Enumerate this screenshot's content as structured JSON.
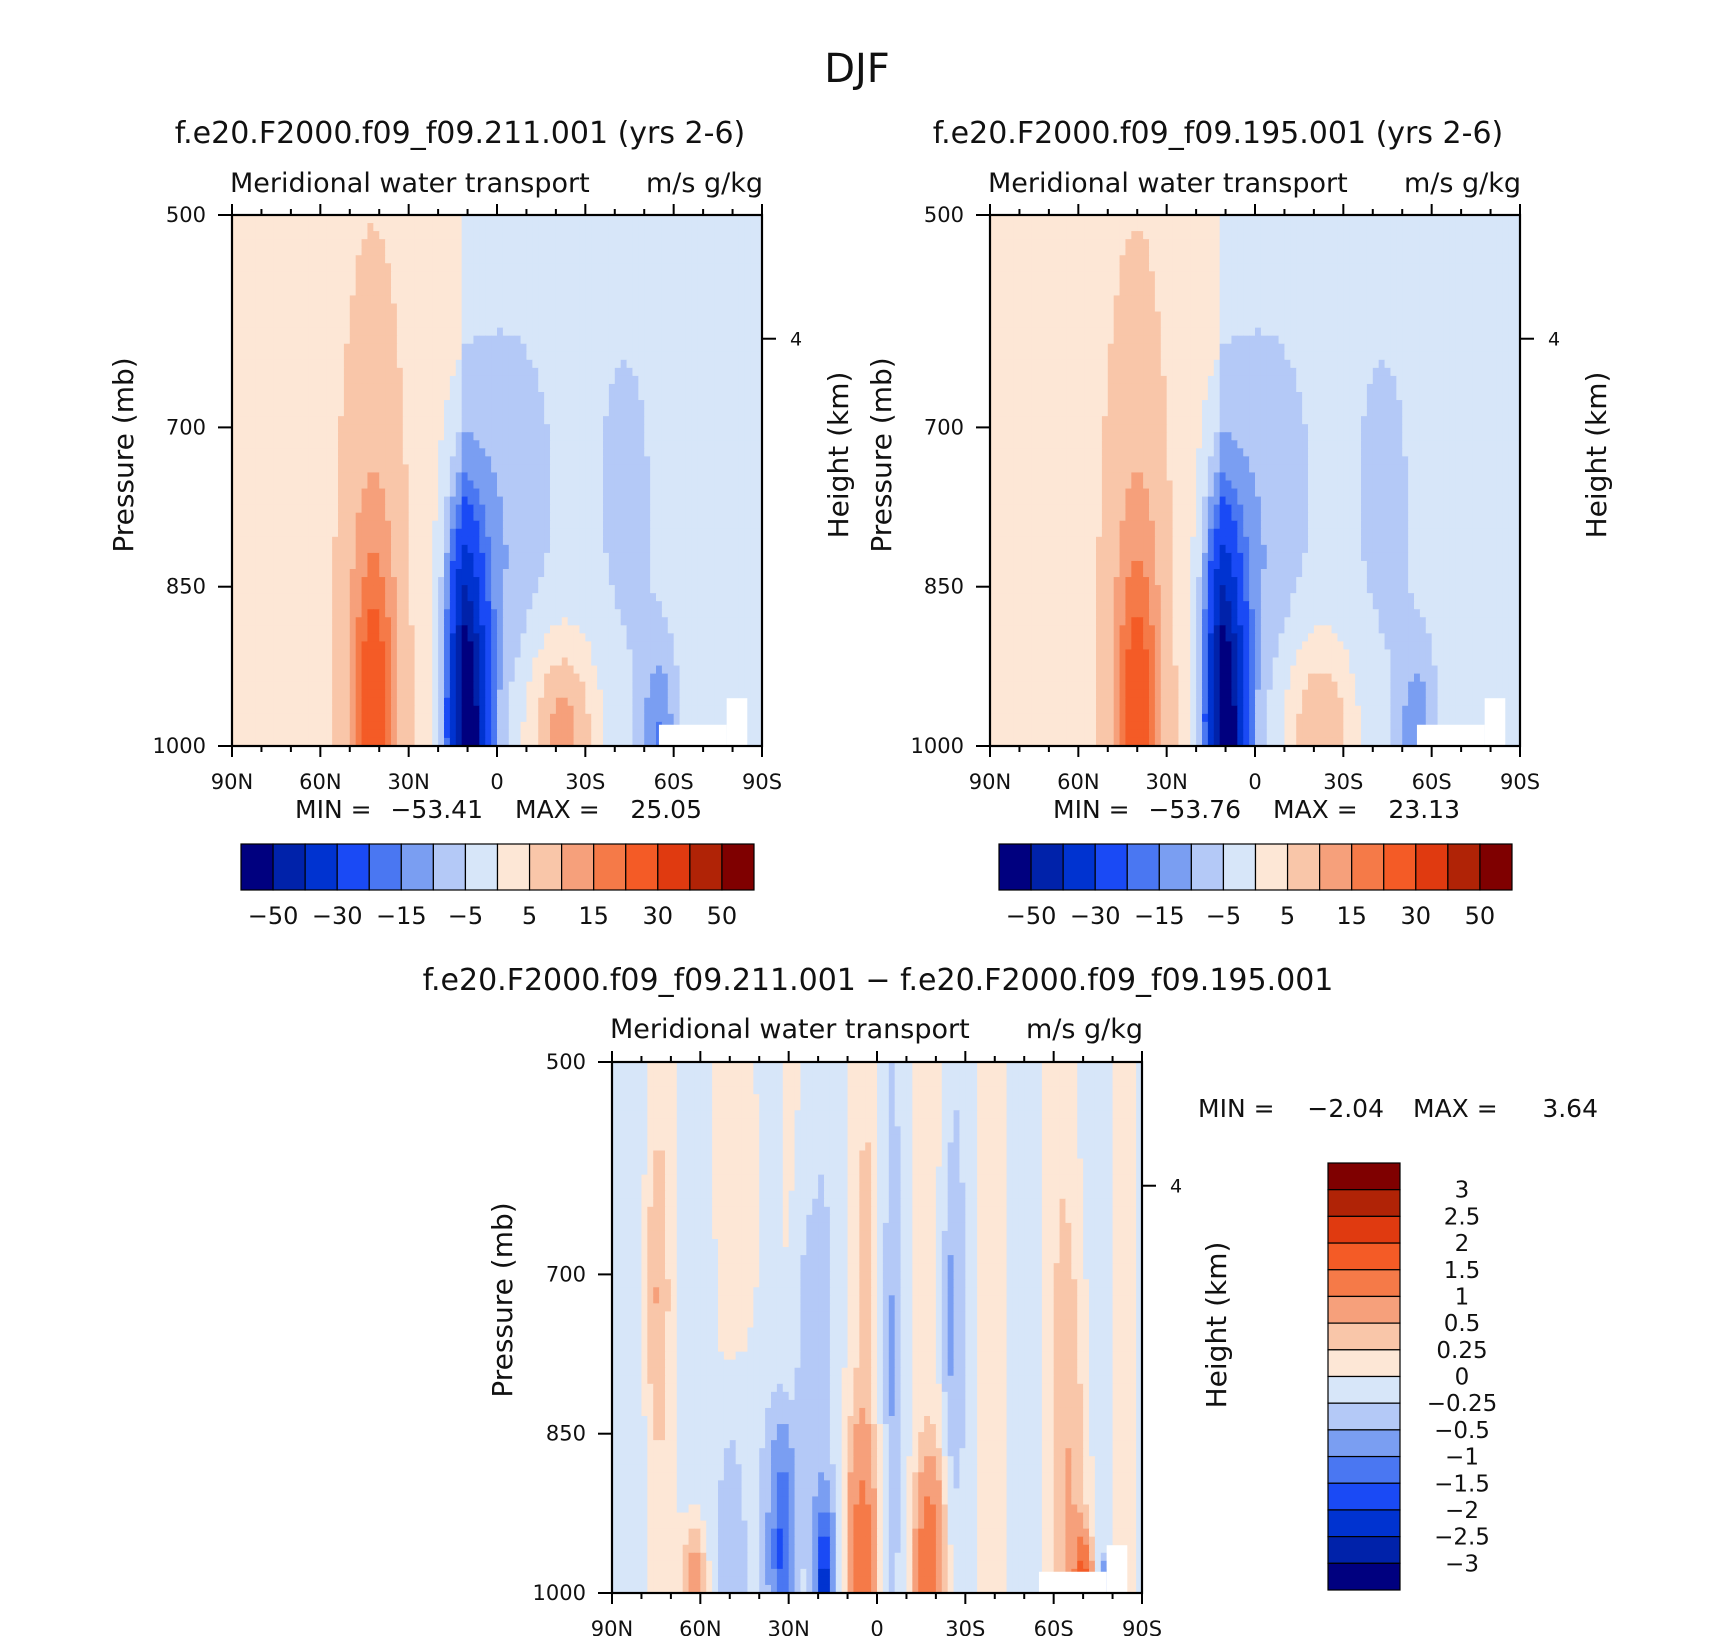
{
  "page_title": "DJF",
  "colors": {
    "neg": [
      "#00007f",
      "#0022aa",
      "#0033d0",
      "#1a4af5",
      "#4a77f2",
      "#7a9ef2",
      "#b4c9f7",
      "#d7e6f9"
    ],
    "pos": [
      "#fde7d6",
      "#f9c6a9",
      "#f6a07b",
      "#f57a48",
      "#f45b26",
      "#e03a10",
      "#b02306",
      "#7f0000"
    ]
  },
  "chart_data": [
    {
      "id": "panel1",
      "type": "heatmap",
      "title": "f.e20.F2000.f09_f09.211.001 (yrs 2-6)",
      "subtitle_left": "Meridional water transport",
      "subtitle_right": "m/s g/kg",
      "ylabel": "Pressure (mb)",
      "ylabel_right": "Height (km)",
      "xticks": [
        "90N",
        "60N",
        "30N",
        "0",
        "30S",
        "60S",
        "90S"
      ],
      "yticks": [
        "500",
        "700",
        "850",
        "1000"
      ],
      "right_ticks": [
        "4"
      ],
      "ylim": [
        1000,
        500
      ],
      "min_label": "MIN =",
      "min_value": "−53.41",
      "max_label": "MAX =",
      "max_value": "25.05",
      "colorbar_ticks": [
        "−50",
        "−30",
        "−15",
        "−5",
        "5",
        "15",
        "30",
        "50"
      ],
      "anomalies": [
        {
          "lat": 42,
          "p": 1000,
          "value": 10,
          "sx": 12,
          "sp": 420
        },
        {
          "lat": 42,
          "p": 960,
          "value": 14,
          "sx": 6,
          "sp": 130
        },
        {
          "lat": 10,
          "p": 1000,
          "value": -56,
          "sx": 7,
          "sp": 170
        },
        {
          "lat": 13,
          "p": 860,
          "value": -10,
          "sx": 4,
          "sp": 120
        },
        {
          "lat": 2,
          "p": 820,
          "value": -6,
          "sx": 15,
          "sp": 150
        },
        {
          "lat": -10,
          "p": 700,
          "value": -2,
          "sx": 30,
          "sp": 300
        },
        {
          "lat": -45,
          "p": 780,
          "value": -3,
          "sx": 12,
          "sp": 220
        },
        {
          "lat": -22,
          "p": 985,
          "value": 15,
          "sx": 12,
          "sp": 90
        },
        {
          "lat": -55,
          "p": 990,
          "value": -12,
          "sx": 6,
          "sp": 80
        }
      ]
    },
    {
      "id": "panel2",
      "type": "heatmap",
      "title": "f.e20.F2000.f09_f09.195.001 (yrs 2-6)",
      "subtitle_left": "Meridional water transport",
      "subtitle_right": "m/s g/kg",
      "ylabel": "Pressure (mb)",
      "ylabel_right": "Height (km)",
      "xticks": [
        "90N",
        "60N",
        "30N",
        "0",
        "30S",
        "60S",
        "90S"
      ],
      "yticks": [
        "500",
        "700",
        "850",
        "1000"
      ],
      "right_ticks": [
        "4"
      ],
      "ylim": [
        1000,
        500
      ],
      "min_label": "MIN =",
      "min_value": "−53.76",
      "max_label": "MAX =",
      "max_value": "23.13",
      "colorbar_ticks": [
        "−50",
        "−30",
        "−15",
        "−5",
        "5",
        "15",
        "30",
        "50"
      ],
      "anomalies": [
        {
          "lat": 40,
          "p": 1000,
          "value": 10,
          "sx": 12,
          "sp": 420
        },
        {
          "lat": 40,
          "p": 960,
          "value": 13,
          "sx": 6,
          "sp": 130
        },
        {
          "lat": 10,
          "p": 1000,
          "value": -56,
          "sx": 7,
          "sp": 170
        },
        {
          "lat": 13,
          "p": 860,
          "value": -10,
          "sx": 4,
          "sp": 120
        },
        {
          "lat": 2,
          "p": 820,
          "value": -6,
          "sx": 15,
          "sp": 150
        },
        {
          "lat": -10,
          "p": 700,
          "value": -2,
          "sx": 30,
          "sp": 300
        },
        {
          "lat": -45,
          "p": 780,
          "value": -3,
          "sx": 12,
          "sp": 220
        },
        {
          "lat": -22,
          "p": 985,
          "value": 13,
          "sx": 12,
          "sp": 90
        },
        {
          "lat": -55,
          "p": 990,
          "value": -11,
          "sx": 6,
          "sp": 80
        }
      ]
    },
    {
      "id": "panel3",
      "type": "heatmap",
      "title": "f.e20.F2000.f09_f09.211.001 − f.e20.F2000.f09_f09.195.001",
      "subtitle_left": "Meridional water transport",
      "subtitle_right": "m/s g/kg",
      "ylabel": "Pressure (mb)",
      "ylabel_right": "Height (km)",
      "xticks": [
        "90N",
        "60N",
        "30N",
        "0",
        "30S",
        "60S",
        "90S"
      ],
      "yticks": [
        "500",
        "700",
        "850",
        "1000"
      ],
      "right_ticks": [
        "4"
      ],
      "ylim": [
        1000,
        500
      ],
      "min_label": "MIN =",
      "min_value": "−2.04",
      "max_label": "MAX =",
      "max_value": "3.64",
      "colorbar_ticks": [
        "3",
        "2.5",
        "2",
        "1.5",
        "1",
        "0.5",
        "0.25",
        "0",
        "−0.25",
        "−0.5",
        "−1",
        "−1.5",
        "−2",
        "−2.5",
        "−3"
      ],
      "anomalies": [
        {
          "lat": 62,
          "p": 990,
          "value": 1.0,
          "sx": 4,
          "sp": 60
        },
        {
          "lat": 50,
          "p": 960,
          "value": -0.6,
          "sx": 5,
          "sp": 150
        },
        {
          "lat": 32,
          "p": 960,
          "value": -1.6,
          "sx": 4,
          "sp": 110
        },
        {
          "lat": 25,
          "p": 800,
          "value": -0.4,
          "sx": 5,
          "sp": 250
        },
        {
          "lat": 18,
          "p": 990,
          "value": -2.0,
          "sx": 3,
          "sp": 70
        },
        {
          "lat": 5,
          "p": 960,
          "value": 1.2,
          "sx": 5,
          "sp": 120
        },
        {
          "lat": 3,
          "p": 660,
          "value": 0.3,
          "sx": 3,
          "sp": 110
        },
        {
          "lat": -5,
          "p": 780,
          "value": -0.3,
          "sx": 2,
          "sp": 200
        },
        {
          "lat": -18,
          "p": 970,
          "value": 1.4,
          "sx": 5,
          "sp": 90
        },
        {
          "lat": -25,
          "p": 740,
          "value": -0.4,
          "sx": 3,
          "sp": 130
        },
        {
          "lat": -67,
          "p": 930,
          "value": 0.5,
          "sx": 7,
          "sp": 300
        },
        {
          "lat": -70,
          "p": 985,
          "value": 1.6,
          "sx": 3,
          "sp": 40
        },
        {
          "lat": -78,
          "p": 995,
          "value": -1.2,
          "sx": 2,
          "sp": 25
        },
        {
          "lat": 75,
          "p": 720,
          "value": 0.4,
          "sx": 4,
          "sp": 140
        },
        {
          "lat": 42,
          "p": 620,
          "value": 0.3,
          "sx": 5,
          "sp": 160
        }
      ]
    }
  ]
}
